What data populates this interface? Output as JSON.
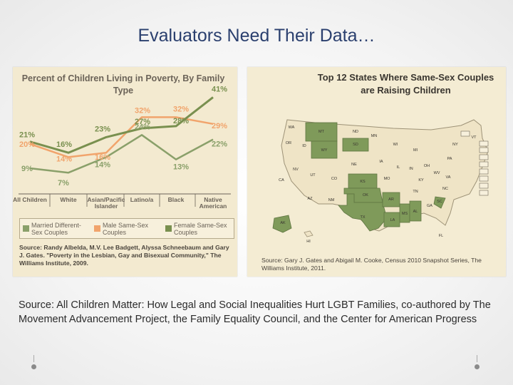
{
  "slide": {
    "title": "Evaluators Need Their Data…",
    "source_text": "Source: All Children Matter: How Legal and Social Inequalities Hurt LGBT Families, co-authored by The Movement Advancement Project, the Family Equality Council, and the Center for American Progress"
  },
  "chart_data": [
    {
      "type": "line",
      "title": "Percent of Children Living in Poverty, By Family Type",
      "categories": [
        "All Children",
        "White",
        "Asian/Pacific Islander",
        "Latino/a",
        "Black",
        "Native American"
      ],
      "series": [
        {
          "name": "Married Different-Sex Couples",
          "color": "#8aa06a",
          "values": [
            9,
            7,
            14,
            24,
            13,
            22
          ]
        },
        {
          "name": "Male Same-Sex Couples",
          "color": "#f1a46c",
          "values": [
            20,
            14,
            16,
            32,
            32,
            29
          ]
        },
        {
          "name": "Female Same-Sex Couples",
          "color": "#79904f",
          "values": [
            21,
            16,
            23,
            27,
            28,
            41
          ]
        }
      ],
      "data_labels": [
        "21%",
        "20%",
        "9%",
        "16%",
        "14%",
        "7%",
        "23%",
        "16%",
        "14%",
        "32%",
        "27%",
        "24%",
        "32%",
        "28%",
        "13%",
        "41%",
        "29%",
        "22%"
      ],
      "legend": {
        "items": [
          {
            "label": "Married Different-Sex Couples",
            "color": "#8aa06a"
          },
          {
            "label": "Male Same-Sex Couples",
            "color": "#f1a46c"
          },
          {
            "label": "Female Same-Sex Couples",
            "color": "#79904f"
          }
        ]
      },
      "source": "Source: Randy Albelda, M.V. Lee Badgett, Alyssa Schneebaum and Gary J. Gates. \"Poverty in the Lesbian, Gay and Bisexual Community,\" The Williams Institute, 2009."
    }
  ],
  "map": {
    "title": "Top 12 States Where Same-Sex Couples are Raising Children",
    "highlight_color": "#7f9a5a",
    "base_color": "#efe4c6",
    "highlighted_states": [
      "MT",
      "WY",
      "SD",
      "KS",
      "OK",
      "TX",
      "AR",
      "MS",
      "AL",
      "SC",
      "LA",
      "AK"
    ],
    "state_labels": [
      "WA",
      "OR",
      "CA",
      "NV",
      "ID",
      "MT",
      "WY",
      "UT",
      "AZ",
      "CO",
      "NM",
      "ND",
      "SD",
      "NE",
      "KS",
      "OK",
      "TX",
      "MN",
      "IA",
      "MO",
      "AR",
      "LA",
      "WI",
      "IL",
      "MS",
      "AL",
      "TN",
      "KY",
      "IN",
      "OH",
      "MI",
      "GA",
      "FL",
      "SC",
      "NC",
      "VA",
      "WV",
      "PA",
      "NY",
      "ME",
      "VT",
      "NH",
      "MA",
      "RI",
      "CT",
      "NJ",
      "DE",
      "MD",
      "DC",
      "AK",
      "HI"
    ],
    "source": "Source: Gary J. Gates and Abigail M. Cooke, Census 2010 Snapshot Series, The Williams Institute, 2011."
  }
}
